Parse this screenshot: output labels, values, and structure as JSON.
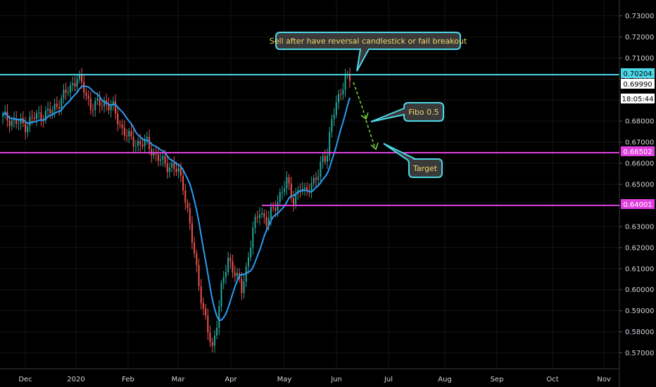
{
  "chart_data": {
    "type": "candlestick",
    "title": "",
    "ylim": [
      0.5625,
      0.7375
    ],
    "y_ticks": [
      "0.73000",
      "0.72000",
      "0.71000",
      "0.70000",
      "0.69000",
      "0.68000",
      "0.67000",
      "0.66000",
      "0.65000",
      "0.64000",
      "0.63000",
      "0.62000",
      "0.61000",
      "0.60000",
      "0.59000",
      "0.58000",
      "0.57000"
    ],
    "x_ticks": [
      "Dec",
      "2020",
      "Feb",
      "Mar",
      "Apr",
      "May",
      "Jun",
      "Jul",
      "Aug",
      "Sep",
      "Oct",
      "Nov"
    ],
    "price_labels": {
      "resistance": "0.70204",
      "last_price": "0.69990",
      "countdown": "18:05:44",
      "support_1": "0.66502",
      "support_2": "0.64001"
    },
    "levels": [
      {
        "value": 0.70204,
        "color": "#4dd8e8"
      },
      {
        "value": 0.66502,
        "color": "#e040e0"
      },
      {
        "value": 0.64001,
        "color": "#e040e0"
      }
    ],
    "annotations": [
      {
        "text": "Sell after have reversal candlestick or fail breakout"
      },
      {
        "text": "Fibo 0.5"
      },
      {
        "text": "Target"
      }
    ],
    "colors": {
      "up": "#26a69a",
      "down": "#ef5350",
      "ma": "#2a9df4",
      "callout_border": "#4dd8e8",
      "callout_bg": "#3a3a3a",
      "callout_text": "#f5d76e",
      "projection": "#7fdc3c"
    },
    "candle_count": 137
  }
}
